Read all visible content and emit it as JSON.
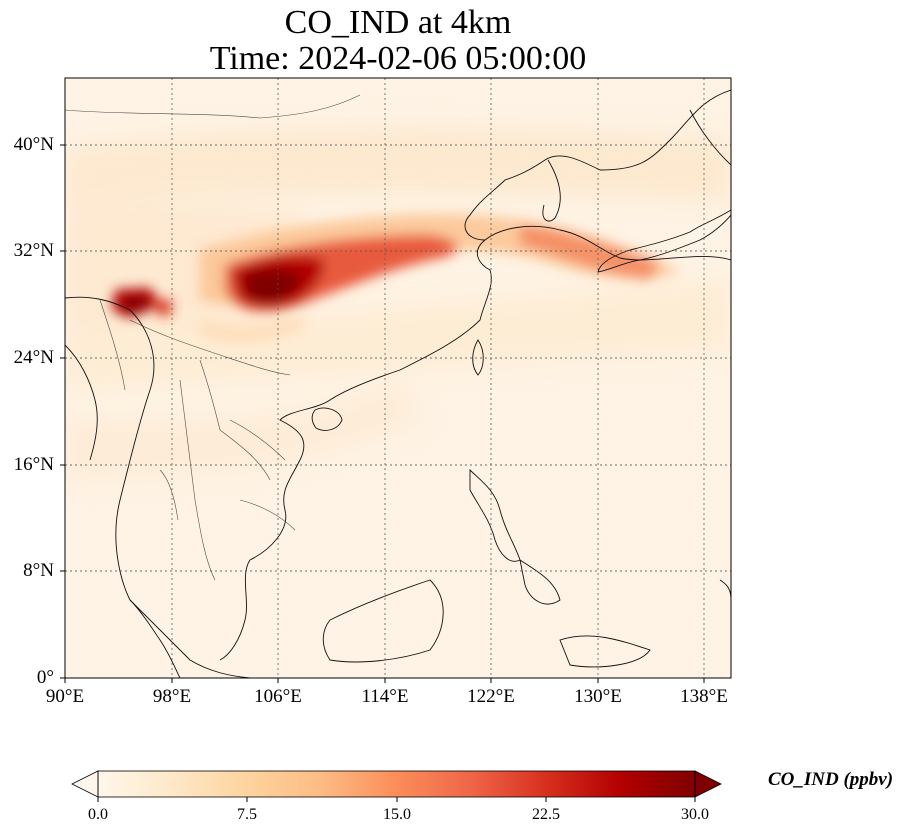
{
  "title": {
    "line1": "CO_IND at 4km",
    "line2": "Time: 2024-02-06 05:00:00"
  },
  "map": {
    "lat_ticks": [
      "0°",
      "8°N",
      "16°N",
      "24°N",
      "32°N",
      "40°N"
    ],
    "lon_ticks": [
      "90°E",
      "98°E",
      "106°E",
      "114°E",
      "122°E",
      "130°E",
      "138°E"
    ],
    "lon_range": [
      90,
      140
    ],
    "lat_range": [
      0,
      45
    ],
    "gridlines": "dotted",
    "colormap": "OrRd",
    "plume_color": "#7f0000"
  },
  "colorbar": {
    "label": "CO_IND (ppbv)",
    "ticks": [
      "0.0",
      "7.5",
      "15.0",
      "22.5",
      "30.0"
    ],
    "range": [
      0,
      30
    ],
    "extend": "both",
    "colors": [
      "#fff7ec",
      "#fee8c8",
      "#fdd49e",
      "#fdbb84",
      "#fc8d59",
      "#ef6548",
      "#d7301f",
      "#b30000",
      "#7f0000"
    ]
  }
}
